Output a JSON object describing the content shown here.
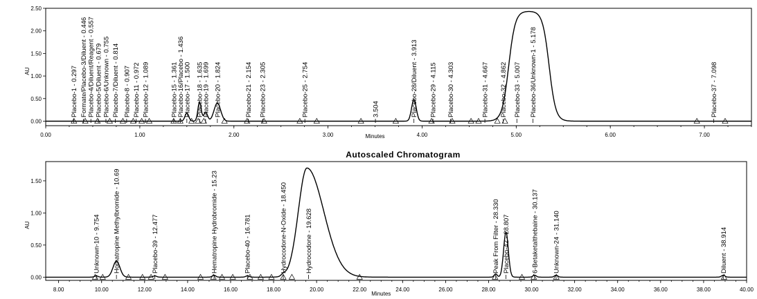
{
  "chart_data": [
    {
      "type": "line",
      "title": "",
      "xlabel": "Minutes",
      "ylabel": "AU",
      "xlim": [
        0,
        7.5
      ],
      "ylim": [
        -0.1,
        2.5
      ],
      "xticks": [
        0.0,
        1.0,
        2.0,
        3.0,
        4.0,
        5.0,
        6.0,
        7.0
      ],
      "xtick_labels": [
        "0.00",
        "1.00",
        "2.00",
        "3.00",
        "4.00",
        "5.00",
        "6.00",
        "7.00"
      ],
      "yticks": [
        0.0,
        0.5,
        1.0,
        1.5,
        2.0,
        2.5
      ],
      "ytick_labels": [
        "0.00",
        "0.50",
        "1.00",
        "1.50",
        "2.00",
        "2.50"
      ],
      "baseline": 0.0,
      "peaks": [
        {
          "rt": 1.5,
          "height": 0.18,
          "width": 0.02
        },
        {
          "rt": 1.635,
          "height": 0.42,
          "width": 0.018
        },
        {
          "rt": 1.7,
          "height": 0.2,
          "width": 0.02
        },
        {
          "rt": 1.824,
          "height": 0.4,
          "width": 0.035
        },
        {
          "rt": 3.913,
          "height": 0.48,
          "width": 0.025
        }
      ],
      "plateau": {
        "start": 4.92,
        "end": 5.35,
        "height": 2.44,
        "edge": 0.035
      },
      "markers": [
        0.3,
        0.42,
        0.55,
        0.68,
        0.82,
        0.93,
        1.02,
        1.1,
        1.36,
        1.43,
        1.55,
        1.62,
        1.68,
        1.9,
        2.14,
        2.32,
        2.7,
        2.88,
        3.35,
        3.72,
        4.1,
        4.32,
        4.52,
        4.6,
        4.8,
        4.88,
        6.92,
        7.22
      ],
      "peak_labels": [
        {
          "x": 0.297,
          "text": "Placebo-1 - 0.297"
        },
        {
          "x": 0.4,
          "text": "Formate/Placebo-3/Diluent - 0.446"
        },
        {
          "x": 0.48,
          "text": "Placebo-4/Diluent/Reagent - 0.557"
        },
        {
          "x": 0.56,
          "text": "Placebo-5/Diluent - 0.679"
        },
        {
          "x": 0.64,
          "text": "Placebo-6/Unknown - 0.755"
        },
        {
          "x": 0.74,
          "text": "Placebo-7/Diluent - 0.814"
        },
        {
          "x": 0.86,
          "text": "Placebo-8 - 0.907"
        },
        {
          "x": 0.96,
          "text": "Placebo-11 - 0.972"
        },
        {
          "x": 1.06,
          "text": "Placebo-12 - 1.089"
        },
        {
          "x": 1.361,
          "text": "Placebo-15 - 1.361"
        },
        {
          "x": 1.43,
          "text": "Placebo-16/Placebo - 1.436"
        },
        {
          "x": 1.5,
          "text": "Placebo-17 - 1.500"
        },
        {
          "x": 1.635,
          "text": "Placebo-18 - 1.635"
        },
        {
          "x": 1.699,
          "text": "Placebo-19 - 1.699"
        },
        {
          "x": 1.824,
          "text": "Placebo-20 - 1.824"
        },
        {
          "x": 2.154,
          "text": "Placebo-21 - 2.154"
        },
        {
          "x": 2.305,
          "text": "Placebo-23 - 2.305"
        },
        {
          "x": 2.754,
          "text": "Placebo-25 - 2.754"
        },
        {
          "x": 3.504,
          "text": "3.504"
        },
        {
          "x": 3.913,
          "text": "Placebo-28/Diluent - 3.913"
        },
        {
          "x": 4.115,
          "text": "Placebo-29 - 4.115"
        },
        {
          "x": 4.303,
          "text": "Placebo-30 - 4.303"
        },
        {
          "x": 4.667,
          "text": "Placebo-31 - 4.667"
        },
        {
          "x": 4.862,
          "text": "Placebo-32 - 4.862"
        },
        {
          "x": 5.007,
          "text": "Placebo-33 - 5.007"
        },
        {
          "x": 5.178,
          "text": "Placebo-36/Unknown-1 - 5.178"
        },
        {
          "x": 7.098,
          "text": "Placebo-37 - 7.098"
        }
      ]
    },
    {
      "type": "line",
      "title": "Autoscaled Chromatogram",
      "xlabel": "Minutes",
      "ylabel": "AU",
      "xlim": [
        7.4,
        40.0
      ],
      "ylim": [
        -0.05,
        1.8
      ],
      "xticks": [
        8,
        10,
        12,
        14,
        16,
        18,
        20,
        22,
        24,
        26,
        28,
        30,
        32,
        34,
        36,
        38,
        40
      ],
      "xtick_labels": [
        "8.00",
        "10.00",
        "12.00",
        "14.00",
        "16.00",
        "18.00",
        "20.00",
        "22.00",
        "24.00",
        "26.00",
        "28.00",
        "30.00",
        "32.00",
        "34.00",
        "36.00",
        "38.00",
        "40.00"
      ],
      "yticks": [
        0.0,
        0.5,
        1.0,
        1.5
      ],
      "ytick_labels": [
        "0.00",
        "0.50",
        "1.00",
        "1.50"
      ],
      "baseline": 0.0,
      "peaks": [
        {
          "rt": 9.754,
          "height": 0.02,
          "width": 0.08
        },
        {
          "rt": 10.69,
          "height": 0.25,
          "width": 0.16
        },
        {
          "rt": 12.477,
          "height": 0.02,
          "width": 0.08
        },
        {
          "rt": 15.23,
          "height": 0.03,
          "width": 0.08
        },
        {
          "rt": 16.781,
          "height": 0.02,
          "width": 0.08
        },
        {
          "rt": 18.45,
          "height": 0.03,
          "width": 0.1
        },
        {
          "rt": 28.33,
          "height": 0.05,
          "width": 0.07
        },
        {
          "rt": 28.807,
          "height": 0.7,
          "width": 0.11
        },
        {
          "rt": 30.137,
          "height": 0.03,
          "width": 0.08
        },
        {
          "rt": 31.14,
          "height": 0.03,
          "width": 0.08
        },
        {
          "rt": 38.914,
          "height": 0.03,
          "width": 0.08
        }
      ],
      "main_peak": {
        "rt": 19.55,
        "height": 1.7,
        "sigma_left": 0.4,
        "sigma_right": 0.78
      },
      "markers": [
        9.7,
        10.05,
        11.25,
        11.9,
        12.3,
        12.95,
        14.6,
        15.2,
        15.6,
        16.1,
        16.9,
        17.4,
        17.9,
        18.45,
        18.85,
        22.0,
        28.3,
        29.55,
        30.1,
        31.15,
        38.95
      ],
      "peak_labels": [
        {
          "x": 9.754,
          "text": "Unknown-10 - 9.754"
        },
        {
          "x": 10.69,
          "text": "Homatropine Methylbromide - 10.69"
        },
        {
          "x": 12.477,
          "text": "Placebo-39 - 12.477"
        },
        {
          "x": 15.23,
          "text": "Hematropine Hydrobromide - 15.23"
        },
        {
          "x": 16.781,
          "text": "Placebo-40 - 16.781"
        },
        {
          "x": 18.45,
          "text": "Hydrocodone-N-Oxide - 18.450"
        },
        {
          "x": 19.628,
          "text": "Hydrocodone - 19.628"
        },
        {
          "x": 28.33,
          "text": "Peak From Filter - 28.330"
        },
        {
          "x": 28.807,
          "text": "Placebo-42 - 28.807"
        },
        {
          "x": 30.137,
          "text": "6-Betaketalthebaine - 30.137"
        },
        {
          "x": 31.14,
          "text": "Unknown-24 - 31.140"
        },
        {
          "x": 38.914,
          "text": "Diluent - 38.914"
        }
      ]
    }
  ]
}
